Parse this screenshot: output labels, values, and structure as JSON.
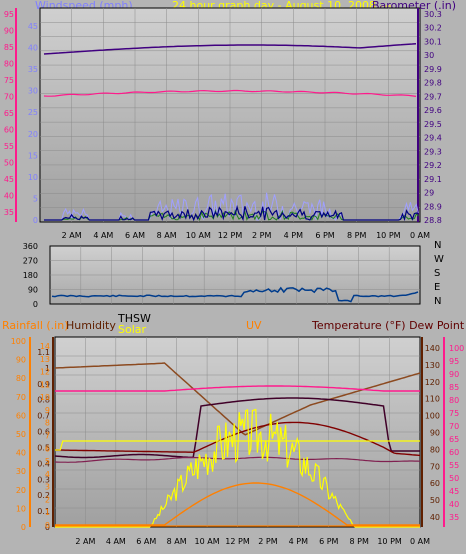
{
  "header": {
    "windspeed_label": "Windspeed (mph)",
    "graph_title": "24 hour graph day - August 10, 2008 ---",
    "barometer_label": "Barometer (.in)"
  },
  "middle": {
    "compass": [
      "N",
      "W",
      "S",
      "E",
      "N"
    ]
  },
  "lower": {
    "rainfall_label": "Rainfall (.in)",
    "humidity_label": "Humidity",
    "thsw_label": "THSW",
    "solar_label": "Solar",
    "uv_label": "UV",
    "temperature_label": "Temperature (°F) Dew Point (°F)"
  },
  "axes": {
    "time_ticks": [
      "2 AM",
      "4 AM",
      "6 AM",
      "8 AM",
      "10 AM",
      "12 PM",
      "2 PM",
      "4 PM",
      "6 PM",
      "8 PM",
      "10 PM",
      "0 AM"
    ],
    "wind_speed_ticks": [
      "45",
      "40",
      "35",
      "30",
      "25",
      "20",
      "15",
      "10",
      "5",
      "0"
    ],
    "wind_speed_left_ticks": [
      "95",
      "90",
      "85",
      "80",
      "75",
      "70",
      "65",
      "60",
      "55",
      "50",
      "45",
      "40",
      "35"
    ],
    "barometer_ticks": [
      "30.3",
      "30.2",
      "30.1",
      "30",
      "29.9",
      "29.8",
      "29.7",
      "29.6",
      "29.5",
      "29.4",
      "29.3",
      "29.2",
      "29.1",
      "29",
      "28.9",
      "28.8"
    ],
    "direction_ticks": [
      "360",
      "270",
      "180",
      "90",
      "0"
    ],
    "humidity_ticks": [
      "100",
      "90",
      "80",
      "70",
      "60",
      "50",
      "40",
      "30",
      "20",
      "10",
      "0"
    ],
    "rain_ticks": [
      "1.1",
      "1",
      "0.9",
      "0.8",
      "0.7",
      "0.6",
      "0.5",
      "0.4",
      "0.3",
      "0.2",
      "0.1",
      "0"
    ],
    "uv_ticks": [
      "14",
      "13",
      "12",
      "11",
      "10",
      "9",
      "8",
      "7",
      "6",
      "5",
      "4",
      "3",
      "2",
      "1",
      "0"
    ],
    "temp_ticks_a": [
      "140",
      "130",
      "120",
      "110",
      "100",
      "90",
      "80",
      "70",
      "60",
      "50",
      "40"
    ],
    "temp_ticks_b": [
      "100",
      "95",
      "90",
      "85",
      "80",
      "75",
      "70",
      "65",
      "60",
      "55",
      "50",
      "45",
      "40",
      "35"
    ]
  },
  "colors": {
    "windspeed": "#8080ff",
    "title": "#ffff00",
    "barometer": "#400080",
    "pink": "#ff1a8c",
    "rain": "#ff8000",
    "humidity": "#602000",
    "thsw": "#000000",
    "solar": "#ffff00",
    "uv": "#ff8000",
    "temperature": "#600000",
    "plot_bg": "#a8a8a8"
  }
}
